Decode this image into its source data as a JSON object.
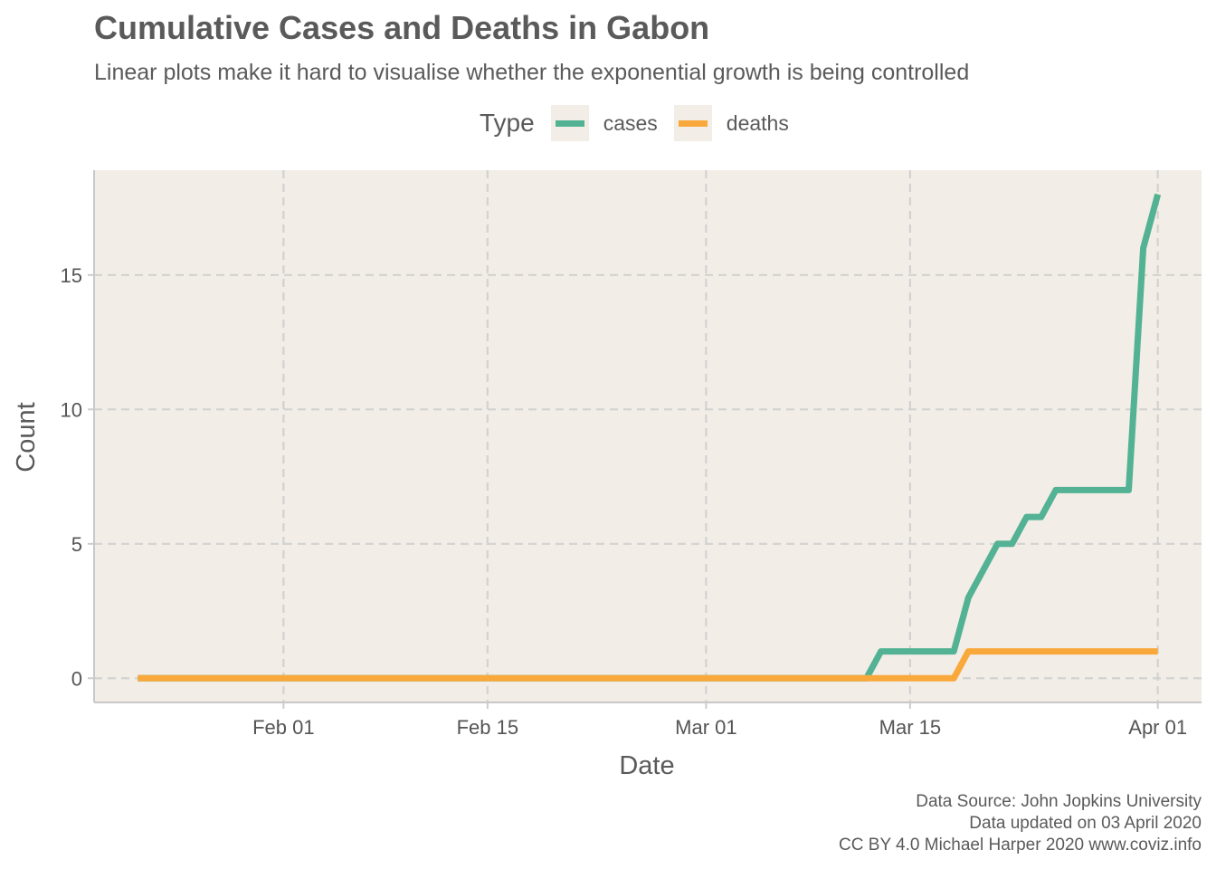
{
  "title": "Cumulative Cases and Deaths in Gabon",
  "subtitle": "Linear plots make it hard to visualise whether the exponential growth is being controlled",
  "legend": {
    "title": "Type",
    "items": [
      {
        "label": "cases",
        "color": "#52b293"
      },
      {
        "label": "deaths",
        "color": "#f9a93c"
      }
    ]
  },
  "caption": {
    "line1": "Data Source: John Jopkins University",
    "line2": "Data updated on 03 April 2020",
    "line3": "CC BY 4.0 Michael Harper 2020 www.coviz.info"
  },
  "chart_data": {
    "type": "line",
    "title": "Cumulative Cases and Deaths in Gabon",
    "subtitle": "Linear plots make it hard to visualise whether the exponential growth is being controlled",
    "xlabel": "Date",
    "ylabel": "Count",
    "x_tick_labels": [
      "Feb 01",
      "Feb 15",
      "Mar 01",
      "Mar 15",
      "Apr 01"
    ],
    "x_tick_dates": [
      "2020-02-01",
      "2020-02-15",
      "2020-03-01",
      "2020-03-15",
      "2020-04-01"
    ],
    "y_ticks": [
      0,
      5,
      10,
      15
    ],
    "xlim": [
      "2020-01-19",
      "2020-04-04"
    ],
    "ylim": [
      -0.9,
      18.9
    ],
    "grid": true,
    "legend_position": "top",
    "panel_color": "#f2ede6",
    "series": [
      {
        "name": "cases",
        "color": "#52b293",
        "points": [
          [
            "2020-01-22",
            0
          ],
          [
            "2020-03-12",
            0
          ],
          [
            "2020-03-13",
            1
          ],
          [
            "2020-03-18",
            1
          ],
          [
            "2020-03-19",
            3
          ],
          [
            "2020-03-21",
            5
          ],
          [
            "2020-03-22",
            5
          ],
          [
            "2020-03-23",
            6
          ],
          [
            "2020-03-24",
            6
          ],
          [
            "2020-03-25",
            7
          ],
          [
            "2020-03-30",
            7
          ],
          [
            "2020-03-31",
            16
          ],
          [
            "2020-04-01",
            18
          ]
        ]
      },
      {
        "name": "deaths",
        "color": "#f9a93c",
        "points": [
          [
            "2020-01-22",
            0
          ],
          [
            "2020-03-18",
            0
          ],
          [
            "2020-03-19",
            1
          ],
          [
            "2020-04-01",
            1
          ]
        ]
      }
    ]
  }
}
